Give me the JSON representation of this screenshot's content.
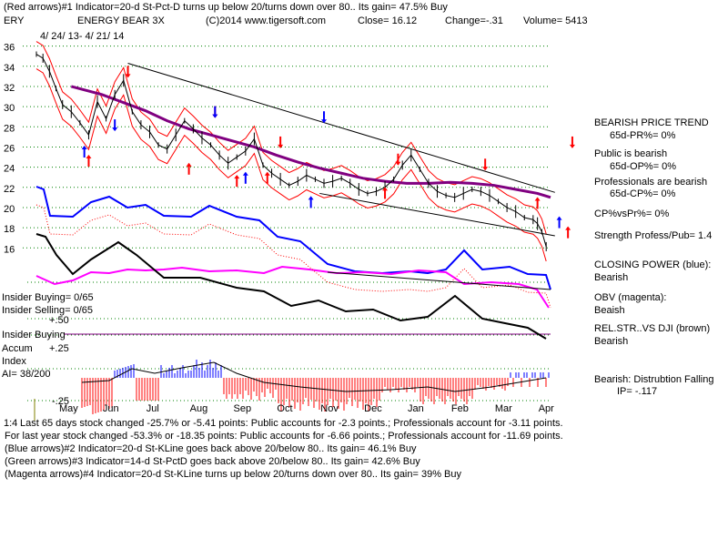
{
  "header": {
    "line1": "(Red arrows)#1 Indicator=20-d St-Pct-D turns up below 20/turns down over 80.. Its gain= 47.5% Buy",
    "ticker": "ERY",
    "name": "ENERGY BEAR 3X",
    "copyright": "(C)2014 www.tigersoft.com",
    "close": "Close=  16.12",
    "change": "Change=-.31",
    "volume": "Volume= 5413",
    "dates": "4/ 24/ 13- 4/ 21/ 14"
  },
  "right_panel": {
    "trend_title": "BEARISH PRICE TREND",
    "pr": "65d-PR%= 0%",
    "public_title": "Public is bearish",
    "op": "65d-OP%= 0%",
    "pros_title": "Professionals are bearish",
    "cp": "65d-CP%= 0%",
    "cpvspr": "CP%vsPr%=  0%",
    "strength": "Strength Profess/Pub= 1.4",
    "closing_power_title": "CLOSING POWER (blue):",
    "closing_power_val": "Bearish",
    "obv_title": "OBV (magenta):",
    "obv_val": "Beaish",
    "relstr_title": "REL.STR..VS DJI (brown)",
    "relstr_val": "Bearish",
    "dist_title": "Bearish: Distrubtion Falling",
    "ip": "IP= -.117"
  },
  "left_panel": {
    "insider_buying": "Insider Buying= 0/65",
    "insider_selling": "Insider Selling= 0/65",
    "plus50": "+.50",
    "insider_buying2": "Insider Buying",
    "accum": "Accum",
    "plus25": "+.25",
    "index": "Index",
    "ai": "AI= 38/200",
    "minus25": "-.25",
    "tiny": "1:4"
  },
  "footer": {
    "line1": "Last 65 days stock changed -25.7% or -5.41 points:  Public accounts for -2.3 points.;  Professionals account for -3.11 points.",
    "line2": "For last year stock changed -53.3% or -18.35 points:  Public accounts for -6.66 points.;  Professionals account for -11.69 points.",
    "line3": "(Blue arrows)#2 Indicator=20-d St-KLine goes back above 20/below 80.. Its gain= 46.1% Buy",
    "line4": "(Green arrows)#3 Indicator=14-d St-PctD goes back above 20/below 80.. Its gain= 42.6% Buy",
    "line5": "(Magenta arrows)#4 Indicator=20-d St-KLine turns up below 20/turns down over 80.. Its gain= 39% Buy"
  },
  "colors": {
    "price": "#000000",
    "closing_power": "#0000ff",
    "obv": "#ff00ff",
    "relstr": "#000000",
    "ma_purple": "#800080",
    "band_red": "#ff0000",
    "accum_red": "#ff0000",
    "accum_blue": "#0000ff",
    "grid_green": "#008000"
  },
  "chart_data": {
    "type": "line",
    "months": [
      "May",
      "Jun",
      "Jul",
      "Aug",
      "Sep",
      "Oct",
      "Nov",
      "Dec",
      "Jan",
      "Feb",
      "Mar",
      "Apr"
    ],
    "y_ticks": [
      36,
      34,
      32,
      30,
      28,
      26,
      24,
      22,
      20,
      18,
      16
    ],
    "ylim": [
      14.4,
      36.6
    ],
    "grid": true,
    "series": [
      {
        "kind": "price",
        "x": [
          0,
          0.15,
          0.3,
          0.45,
          0.6,
          0.8,
          1.0,
          1.2,
          1.4,
          1.6,
          1.8,
          2.0,
          2.2,
          2.4,
          2.6,
          2.8,
          3.0,
          3.2,
          3.4,
          3.6,
          3.8,
          4.0,
          4.2,
          4.4,
          4.6,
          4.8,
          5.0,
          5.2,
          5.4,
          5.6,
          5.8,
          6.0,
          6.2,
          6.4,
          6.6,
          6.8,
          7.0,
          7.2,
          7.4,
          7.6,
          7.8,
          8.0,
          8.2,
          8.4,
          8.6,
          8.8,
          9.0,
          9.2,
          9.4,
          9.6,
          9.8,
          10.0,
          10.2,
          10.4,
          10.6,
          10.8,
          11.0,
          11.2,
          11.4,
          11.5,
          11.6,
          11.7
        ],
        "values": [
          35.2,
          34.8,
          33.5,
          31.8,
          30.2,
          29.5,
          28.4,
          27.2,
          30.5,
          28.8,
          31.2,
          32.6,
          29.5,
          28.2,
          27.5,
          26.2,
          25.8,
          27.2,
          28.6,
          27.8,
          26.9,
          26.2,
          25.2,
          24.4,
          25.0,
          25.6,
          26.8,
          24.2,
          23.4,
          22.8,
          22.2,
          22.6,
          23.2,
          22.8,
          22.4,
          22.6,
          22.9,
          22.4,
          21.8,
          21.4,
          21.6,
          22.0,
          22.8,
          24.2,
          25.2,
          23.8,
          22.4,
          21.6,
          21.2,
          21.0,
          21.4,
          21.8,
          21.6,
          21.2,
          20.6,
          20.0,
          19.6,
          19.0,
          18.8,
          18.4,
          17.6,
          16.12
        ]
      },
      {
        "kind": "ma",
        "x": [
          0.8,
          1.5,
          2.0,
          2.5,
          3.0,
          3.5,
          4.0,
          4.5,
          5.0,
          5.5,
          6.0,
          6.5,
          7.0,
          7.5,
          8.0,
          8.5,
          9.0,
          9.5,
          10.0,
          10.5,
          11.0,
          11.5,
          11.8
        ],
        "values": [
          32.0,
          31.2,
          30.4,
          29.6,
          28.6,
          27.8,
          27.2,
          26.6,
          26.0,
          25.2,
          24.5,
          23.9,
          23.4,
          22.9,
          22.6,
          22.4,
          22.4,
          22.5,
          22.4,
          22.2,
          21.8,
          21.4,
          21.0
        ]
      }
    ],
    "annotations": {
      "red_arrows_down": [
        [
          2.1,
          33.5
        ],
        [
          4.1,
          29.5
        ],
        [
          5.6,
          26.5
        ],
        [
          8.3,
          24.8
        ],
        [
          10.3,
          24.3
        ],
        [
          12.3,
          26.5
        ]
      ],
      "red_arrows_up": [
        [
          1.2,
          24.6
        ],
        [
          3.5,
          23.8
        ],
        [
          4.6,
          22.6
        ],
        [
          5.3,
          22.9
        ],
        [
          8.0,
          21.4
        ],
        [
          11.5,
          20.4
        ],
        [
          12.2,
          17.5
        ]
      ],
      "blue_arrows_up": [
        [
          1.1,
          25.5
        ],
        [
          4.8,
          22.9
        ],
        [
          6.3,
          20.5
        ],
        [
          12.0,
          18.5
        ]
      ],
      "blue_arrows_down": [
        [
          1.8,
          28.2
        ],
        [
          4.1,
          29.5
        ],
        [
          6.6,
          29.0
        ]
      ]
    }
  }
}
